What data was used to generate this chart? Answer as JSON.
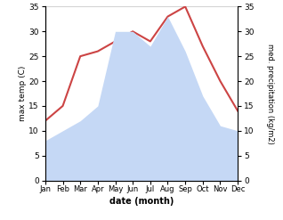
{
  "months": [
    "Jan",
    "Feb",
    "Mar",
    "Apr",
    "May",
    "Jun",
    "Jul",
    "Aug",
    "Sep",
    "Oct",
    "Nov",
    "Dec"
  ],
  "temperature": [
    12,
    15,
    25,
    26,
    28,
    30,
    28,
    33,
    35,
    27,
    20,
    14
  ],
  "precipitation": [
    8,
    10,
    12,
    15,
    30,
    30,
    27,
    33,
    26,
    17,
    11,
    10
  ],
  "temp_color": "#cc4444",
  "precip_color": "#c5d8f5",
  "background_color": "#ffffff",
  "ylim_left": [
    0,
    35
  ],
  "ylim_right": [
    0,
    35
  ],
  "ylabel_left": "max temp (C)",
  "ylabel_right": "med. precipitation (kg/m2)",
  "xlabel": "date (month)",
  "yticks": [
    0,
    5,
    10,
    15,
    20,
    25,
    30,
    35
  ]
}
